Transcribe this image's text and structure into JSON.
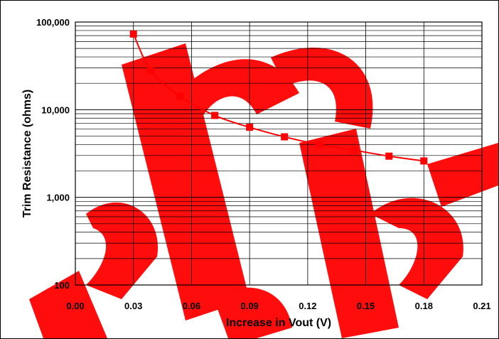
{
  "chart_data": {
    "type": "line",
    "title": "",
    "xlabel": "Increase in Vout (V)",
    "ylabel": "Trim Resistance (ohms)",
    "xlim": [
      0.0,
      0.21
    ],
    "ylim": [
      100,
      100000
    ],
    "yscale": "log",
    "grid": true,
    "x_ticks": [
      "0.00",
      "0.03",
      "0.06",
      "0.09",
      "0.12",
      "0.15",
      "0.18",
      "0.21"
    ],
    "y_ticks": [
      "100",
      "1,000",
      "10,000",
      "100,000"
    ],
    "series": [
      {
        "color": "#ff0000",
        "marker": "square",
        "x": [
          0.03,
          0.039,
          0.054,
          0.072,
          0.09,
          0.108,
          0.126,
          0.144,
          0.162,
          0.18
        ],
        "y": [
          73000,
          28000,
          14200,
          8600,
          6300,
          4900,
          4000,
          3450,
          2950,
          2600
        ]
      }
    ],
    "colors": {
      "watermark": "#ff0000",
      "grid": "#000000",
      "series": "#ff0000"
    }
  }
}
